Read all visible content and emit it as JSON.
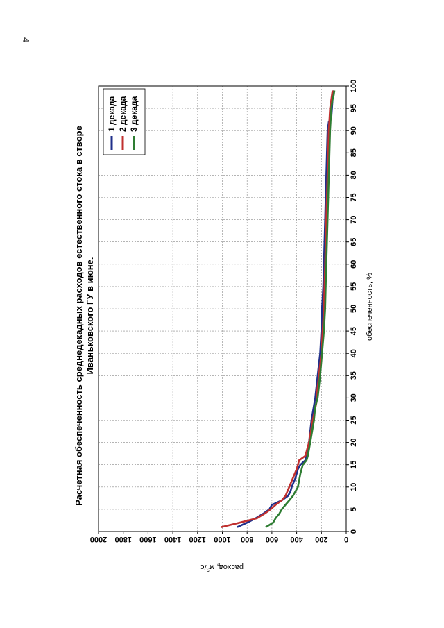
{
  "page_number": "4",
  "chart_data": {
    "type": "line",
    "title_line1": "Расчетная обеспеченность среднедекадных расходов естественного стока в створе",
    "title_line2": "Иваньковского ГУ в июне.",
    "xlabel": "обеспеченность, %",
    "ylabel": "расход, м³/с",
    "ylabel_main": "расход, м",
    "ylabel_sup": "3",
    "ylabel_tail": "/с",
    "xlim": [
      0,
      100
    ],
    "ylim": [
      0,
      2000
    ],
    "x_ticks": [
      0,
      5,
      10,
      15,
      20,
      25,
      30,
      35,
      40,
      45,
      50,
      55,
      60,
      65,
      70,
      75,
      80,
      85,
      90,
      95,
      100
    ],
    "y_ticks": [
      0,
      200,
      400,
      600,
      800,
      1000,
      1200,
      1400,
      1600,
      1800,
      2000
    ],
    "grid": true,
    "legend_position": "top-right",
    "series": [
      {
        "name": "1 декада",
        "color": "#1f2f8a",
        "points": [
          [
            1,
            880
          ],
          [
            2,
            800
          ],
          [
            3,
            730
          ],
          [
            4,
            670
          ],
          [
            5,
            620
          ],
          [
            6,
            600
          ],
          [
            7,
            520
          ],
          [
            8,
            470
          ],
          [
            9,
            450
          ],
          [
            10,
            440
          ],
          [
            12,
            410
          ],
          [
            14,
            390
          ],
          [
            15,
            370
          ],
          [
            16,
            330
          ],
          [
            17,
            320
          ],
          [
            20,
            300
          ],
          [
            25,
            280
          ],
          [
            30,
            250
          ],
          [
            35,
            230
          ],
          [
            40,
            210
          ],
          [
            45,
            200
          ],
          [
            50,
            195
          ],
          [
            55,
            185
          ],
          [
            60,
            180
          ],
          [
            65,
            175
          ],
          [
            70,
            170
          ],
          [
            75,
            165
          ],
          [
            80,
            160
          ],
          [
            85,
            155
          ],
          [
            90,
            150
          ],
          [
            92,
            140
          ],
          [
            93,
            120
          ],
          [
            95,
            115
          ],
          [
            97,
            110
          ],
          [
            99,
            100
          ]
        ]
      },
      {
        "name": "2 декада",
        "color": "#c0302f",
        "points": [
          [
            1,
            1010
          ],
          [
            2,
            860
          ],
          [
            3,
            720
          ],
          [
            4,
            660
          ],
          [
            5,
            610
          ],
          [
            6,
            570
          ],
          [
            7,
            520
          ],
          [
            8,
            490
          ],
          [
            10,
            460
          ],
          [
            12,
            430
          ],
          [
            14,
            400
          ],
          [
            16,
            380
          ],
          [
            17,
            330
          ],
          [
            18,
            320
          ],
          [
            20,
            300
          ],
          [
            25,
            270
          ],
          [
            29,
            240
          ],
          [
            30,
            240
          ],
          [
            35,
            220
          ],
          [
            40,
            200
          ],
          [
            45,
            190
          ],
          [
            50,
            180
          ],
          [
            55,
            175
          ],
          [
            60,
            170
          ],
          [
            65,
            165
          ],
          [
            70,
            160
          ],
          [
            75,
            155
          ],
          [
            80,
            150
          ],
          [
            85,
            145
          ],
          [
            90,
            140
          ],
          [
            95,
            130
          ],
          [
            97,
            120
          ],
          [
            99,
            110
          ]
        ]
      },
      {
        "name": "3 декада",
        "color": "#2e7d32",
        "points": [
          [
            1,
            650
          ],
          [
            2,
            590
          ],
          [
            3,
            570
          ],
          [
            4,
            540
          ],
          [
            5,
            520
          ],
          [
            6,
            490
          ],
          [
            7,
            460
          ],
          [
            8,
            430
          ],
          [
            9,
            410
          ],
          [
            10,
            390
          ],
          [
            13,
            370
          ],
          [
            15,
            350
          ],
          [
            16,
            320
          ],
          [
            17,
            310
          ],
          [
            20,
            290
          ],
          [
            25,
            260
          ],
          [
            28,
            250
          ],
          [
            30,
            230
          ],
          [
            35,
            210
          ],
          [
            40,
            195
          ],
          [
            45,
            180
          ],
          [
            50,
            170
          ],
          [
            55,
            165
          ],
          [
            60,
            160
          ],
          [
            65,
            155
          ],
          [
            70,
            150
          ],
          [
            75,
            145
          ],
          [
            80,
            140
          ],
          [
            85,
            135
          ],
          [
            90,
            130
          ],
          [
            95,
            120
          ],
          [
            97,
            110
          ],
          [
            98,
            100
          ],
          [
            99,
            95
          ]
        ]
      }
    ]
  }
}
